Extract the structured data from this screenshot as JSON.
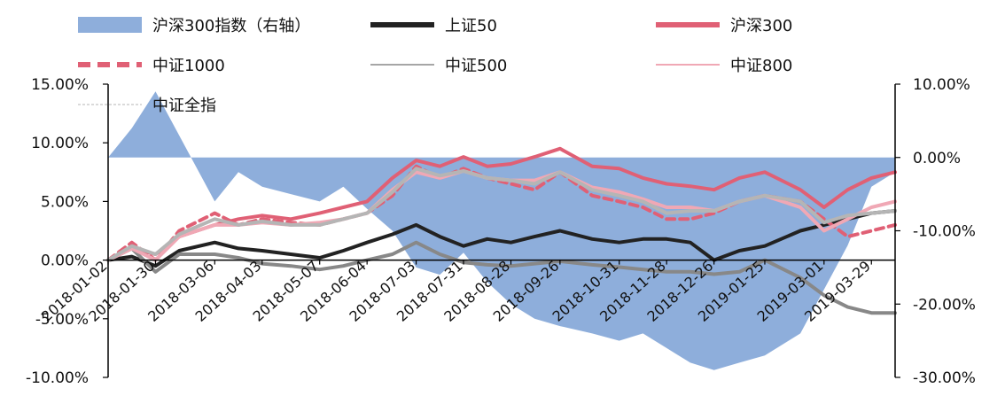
{
  "chart_data": {
    "type": "line",
    "title": "",
    "legend_position": "top",
    "grid": false,
    "x_ticks": [
      "2018-01-02",
      "2018-01-30",
      "2018-03-06",
      "2018-04-03",
      "2018-05-07",
      "2018-06-04",
      "2018-07-03",
      "2018-07-31",
      "2018-08-28",
      "2018-09-26",
      "2018-10-31",
      "2018-11-28",
      "2018-12-26",
      "2019-01-25",
      "2019-03-01",
      "2019-03-29"
    ],
    "left_axis": {
      "ylim": [
        -10,
        15
      ],
      "ticks": [
        -10,
        -5,
        0,
        5,
        10,
        15
      ],
      "tick_labels": [
        "-10.00%",
        "-5.00%",
        "0.00%",
        "5.00%",
        "10.00%",
        "15.00%"
      ]
    },
    "right_axis": {
      "ylim": [
        -30,
        10
      ],
      "ticks": [
        -30,
        -20,
        -10,
        0,
        10
      ],
      "tick_labels": [
        "-30.00%",
        "-20.00%",
        "-10.00%",
        "0.00%",
        "10.00%"
      ]
    },
    "x": [
      "2018-01-02",
      "2018-01-16",
      "2018-01-30",
      "2018-02-13",
      "2018-03-06",
      "2018-03-20",
      "2018-04-03",
      "2018-04-20",
      "2018-05-07",
      "2018-05-21",
      "2018-06-04",
      "2018-06-19",
      "2018-07-03",
      "2018-07-17",
      "2018-07-31",
      "2018-08-14",
      "2018-08-28",
      "2018-09-11",
      "2018-09-26",
      "2018-10-15",
      "2018-10-31",
      "2018-11-14",
      "2018-11-28",
      "2018-12-12",
      "2018-12-26",
      "2019-01-10",
      "2019-01-25",
      "2019-02-15",
      "2019-03-01",
      "2019-03-15",
      "2019-03-29",
      "2019-04-12"
    ],
    "series": [
      {
        "name": "沪深300指数（右轴）",
        "type": "area",
        "axis": "right",
        "color": "#8eaedb",
        "values": [
          0,
          4,
          9,
          3,
          -6,
          -2,
          -4,
          -5,
          -6,
          -4,
          -7,
          -10,
          -15,
          -16,
          -13,
          -17,
          -20,
          -22,
          -23,
          -24,
          -25,
          -24,
          -26,
          -28,
          -29,
          -28,
          -27,
          -24,
          -18,
          -12,
          -4,
          -2
        ]
      },
      {
        "name": "上证50",
        "type": "line",
        "axis": "left",
        "color": "#222222",
        "width": 4,
        "values": [
          0,
          0.3,
          -0.5,
          0.8,
          1.5,
          1.0,
          0.8,
          0.5,
          0.2,
          0.8,
          1.5,
          2.2,
          3.0,
          2.0,
          1.2,
          1.8,
          1.5,
          2.0,
          2.5,
          1.8,
          1.5,
          1.8,
          1.8,
          1.5,
          0,
          0.8,
          1.2,
          2.5,
          3.0,
          3.5,
          4.0,
          4.2
        ]
      },
      {
        "name": "沪深300",
        "type": "line",
        "axis": "left",
        "color": "#e06075",
        "width": 4,
        "values": [
          0,
          1.0,
          0.5,
          2.0,
          3.0,
          3.5,
          3.8,
          3.5,
          4.0,
          4.5,
          5.0,
          7.0,
          8.5,
          8.0,
          8.8,
          8.0,
          8.2,
          8.8,
          9.5,
          8.0,
          7.8,
          7.0,
          6.5,
          6.3,
          6.0,
          7.0,
          7.5,
          6.0,
          4.5,
          6.0,
          7.0,
          7.5
        ]
      },
      {
        "name": "中证1000",
        "type": "line",
        "axis": "left",
        "color": "#e06075",
        "width": 4,
        "dash": "dashed",
        "values": [
          0,
          1.5,
          0,
          2.5,
          4.0,
          3.0,
          3.5,
          3.2,
          3.0,
          3.5,
          4.0,
          5.5,
          8.0,
          7.0,
          7.8,
          7.0,
          6.5,
          6.0,
          7.5,
          5.5,
          5.0,
          4.5,
          3.5,
          3.5,
          4.0,
          5.0,
          5.5,
          5.0,
          3.5,
          2.0,
          2.5,
          3.0
        ]
      },
      {
        "name": "中证500",
        "type": "line",
        "axis": "left",
        "color": "#888888",
        "width": 4,
        "values": [
          0,
          1.0,
          -1.0,
          0.5,
          0.5,
          0.2,
          -0.3,
          -0.5,
          -0.8,
          -0.5,
          0,
          0.5,
          1.5,
          0.5,
          -0.2,
          -0.4,
          -0.5,
          -0.3,
          -0.1,
          -0.4,
          -0.6,
          -0.8,
          -1.0,
          -1.0,
          -1.2,
          -1.0,
          0,
          -1.5,
          -3.0,
          -4.0,
          -4.5,
          -4.5
        ]
      },
      {
        "name": "中证800",
        "type": "line",
        "axis": "left",
        "color": "#f0a8b5",
        "width": 4,
        "values": [
          0,
          1.0,
          0,
          2.0,
          3.0,
          3.0,
          3.2,
          3.0,
          3.2,
          3.5,
          4.0,
          6.0,
          7.5,
          7.0,
          7.6,
          7.0,
          6.8,
          6.8,
          7.5,
          6.2,
          5.8,
          5.2,
          4.5,
          4.5,
          4.2,
          5.0,
          5.5,
          4.5,
          2.5,
          3.5,
          4.5,
          5.0
        ]
      },
      {
        "name": "中证全指",
        "type": "line",
        "axis": "left",
        "color": "#b5b5b5",
        "width": 4,
        "values": [
          0,
          1.2,
          0.5,
          2.2,
          3.5,
          3.0,
          3.3,
          3.0,
          3.0,
          3.5,
          4.0,
          5.8,
          7.8,
          7.2,
          7.6,
          7.0,
          6.8,
          6.5,
          7.5,
          6.0,
          5.5,
          5.0,
          4.0,
          4.2,
          4.2,
          5.0,
          5.5,
          5.0,
          3.2,
          3.8,
          4.0,
          4.2
        ]
      }
    ]
  }
}
